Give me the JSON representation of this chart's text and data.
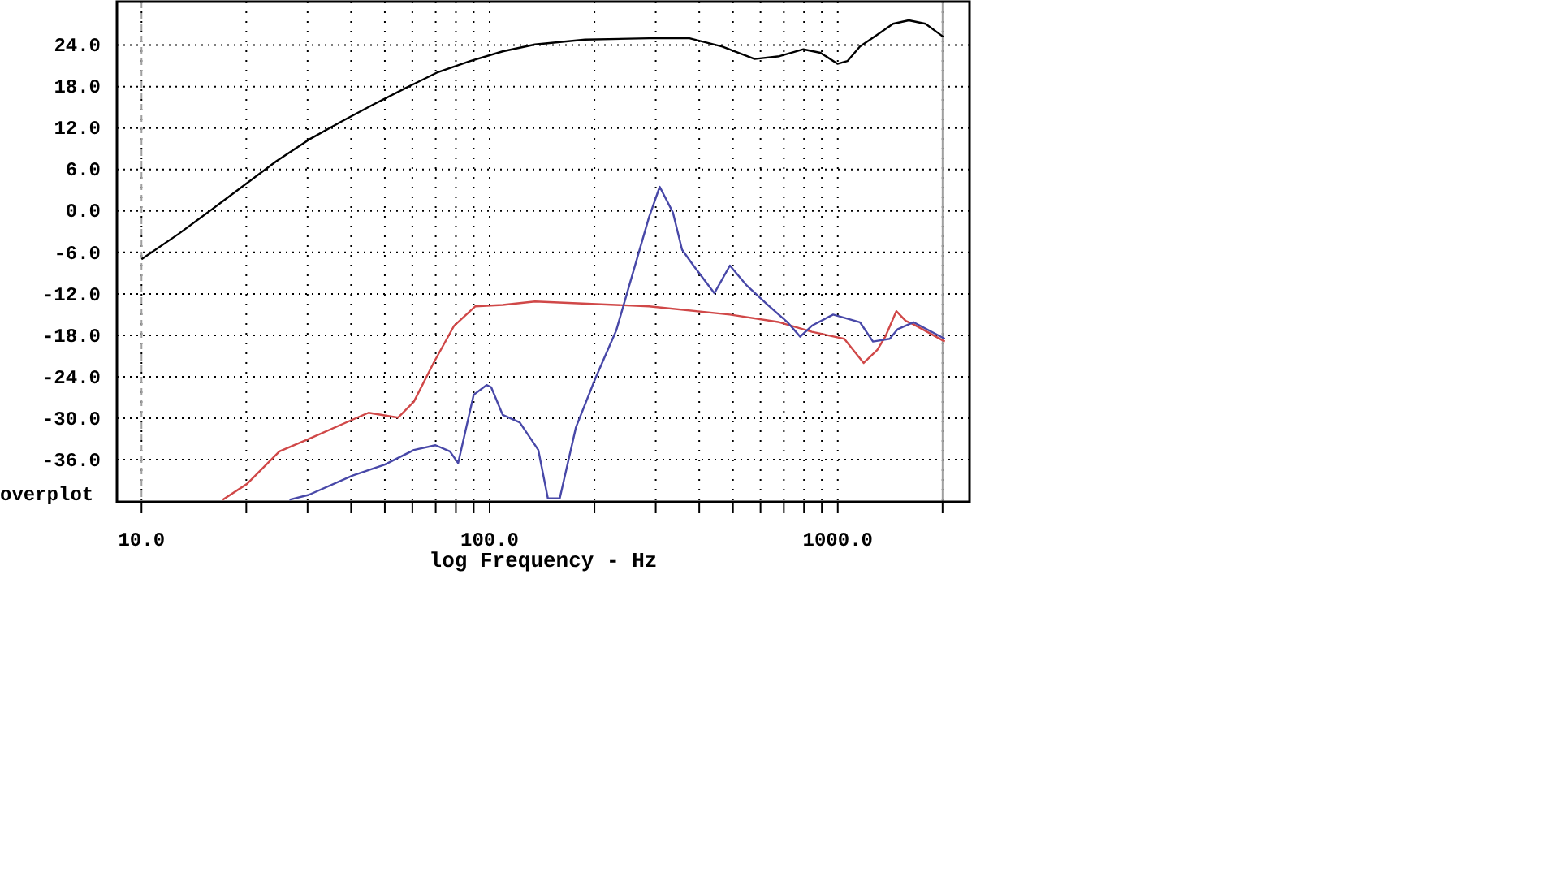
{
  "chart_data": {
    "type": "line",
    "xlabel": "log Frequency - Hz",
    "annotations": [
      "overplot"
    ],
    "log": "x",
    "grid": true,
    "marker": "none",
    "line_style": "solid",
    "xlim": [
      8.5,
      2390
    ],
    "ylim": [
      -42.1,
      30.3
    ],
    "xticks": [
      {
        "value": 10,
        "label": "10.0"
      },
      {
        "value": 20,
        "label": null
      },
      {
        "value": 30,
        "label": null
      },
      {
        "value": 40,
        "label": null
      },
      {
        "value": 50,
        "label": null
      },
      {
        "value": 60,
        "label": null
      },
      {
        "value": 70,
        "label": null
      },
      {
        "value": 80,
        "label": null
      },
      {
        "value": 90,
        "label": null
      },
      {
        "value": 100,
        "label": "100.0"
      },
      {
        "value": 200,
        "label": null
      },
      {
        "value": 300,
        "label": null
      },
      {
        "value": 400,
        "label": null
      },
      {
        "value": 500,
        "label": null
      },
      {
        "value": 600,
        "label": null
      },
      {
        "value": 700,
        "label": null
      },
      {
        "value": 800,
        "label": null
      },
      {
        "value": 900,
        "label": null
      },
      {
        "value": 1000,
        "label": "1000.0"
      },
      {
        "value": 2000,
        "label": null
      }
    ],
    "yticks": [
      {
        "value": 24,
        "label": "24.0"
      },
      {
        "value": 18,
        "label": "18.0"
      },
      {
        "value": 12,
        "label": "12.0"
      },
      {
        "value": 6,
        "label": "6.0"
      },
      {
        "value": 0,
        "label": "0.0"
      },
      {
        "value": -6,
        "label": "-6.0"
      },
      {
        "value": -12,
        "label": "-12.0"
      },
      {
        "value": -18,
        "label": "-18.0"
      },
      {
        "value": -24,
        "label": "-24.0"
      },
      {
        "value": -30,
        "label": "-30.0"
      },
      {
        "value": -36,
        "label": "-36.0"
      }
    ],
    "ref_lines": [
      {
        "axis": "x",
        "value": 10,
        "color": "#a0a0a0",
        "line_style": "dashed"
      },
      {
        "axis": "x",
        "value": 2000,
        "color": "#a0a0a0",
        "line_style": "solid"
      }
    ],
    "series": [
      {
        "color": "#000000",
        "x": [
          10,
          12.8,
          15.9,
          19.7,
          24.4,
          30.2,
          37.4,
          46.3,
          57.4,
          71.1,
          88,
          109,
          135,
          188,
          287,
          375,
          466,
          577,
          680,
          797,
          892,
          998,
          1066,
          1158,
          1299,
          1441,
          1600,
          1787,
          2010
        ],
        "values": [
          -7.0,
          -3.3,
          0.2,
          3.7,
          7.2,
          10.3,
          12.9,
          15.4,
          17.8,
          20.1,
          21.7,
          23.1,
          24.1,
          24.8,
          25.0,
          25.0,
          23.8,
          22.0,
          22.4,
          23.4,
          22.9,
          21.3,
          21.7,
          23.8,
          25.5,
          27.1,
          27.6,
          27.1,
          25.2
        ]
      },
      {
        "color": "#d04848",
        "x": [
          17.1,
          20.1,
          24.9,
          30.2,
          40.4,
          44.9,
          54.6,
          60.6,
          69,
          79.1,
          91,
          109,
          135,
          287,
          490,
          680,
          843,
          1044,
          1187,
          1299,
          1369,
          1473,
          1567,
          1650,
          2030
        ],
        "values": [
          -41.8,
          -39.5,
          -34.8,
          -33.0,
          -30.2,
          -29.2,
          -29.9,
          -27.6,
          -22.0,
          -16.6,
          -13.8,
          -13.6,
          -13.1,
          -13.8,
          -15.0,
          -16.1,
          -17.5,
          -18.5,
          -22.0,
          -20.1,
          -18.2,
          -14.5,
          -15.9,
          -16.4,
          -18.9
        ]
      },
      {
        "color": "#4848a8",
        "x": [
          26.6,
          30.2,
          40.4,
          50,
          60.6,
          69.9,
          76.9,
          81.2,
          90,
          98,
          101,
          109,
          122,
          138,
          147,
          159,
          177,
          201,
          231,
          264,
          287,
          308,
          336,
          357,
          385,
          442,
          490,
          548,
          630,
          717,
          780,
          843,
          970,
          1158,
          1262,
          1410,
          1487,
          1650,
          2030
        ],
        "values": [
          -41.8,
          -41.1,
          -38.3,
          -36.7,
          -34.6,
          -33.9,
          -34.8,
          -36.5,
          -26.6,
          -25.2,
          -25.5,
          -29.5,
          -30.6,
          -34.6,
          -41.6,
          -41.6,
          -31.3,
          -24.3,
          -17.3,
          -7.2,
          -0.9,
          3.5,
          -0.2,
          -5.6,
          -7.9,
          -11.9,
          -7.9,
          -10.8,
          -13.6,
          -16.1,
          -18.2,
          -16.6,
          -15.0,
          -16.1,
          -18.9,
          -18.5,
          -17.1,
          -16.1,
          -18.5
        ]
      }
    ]
  }
}
